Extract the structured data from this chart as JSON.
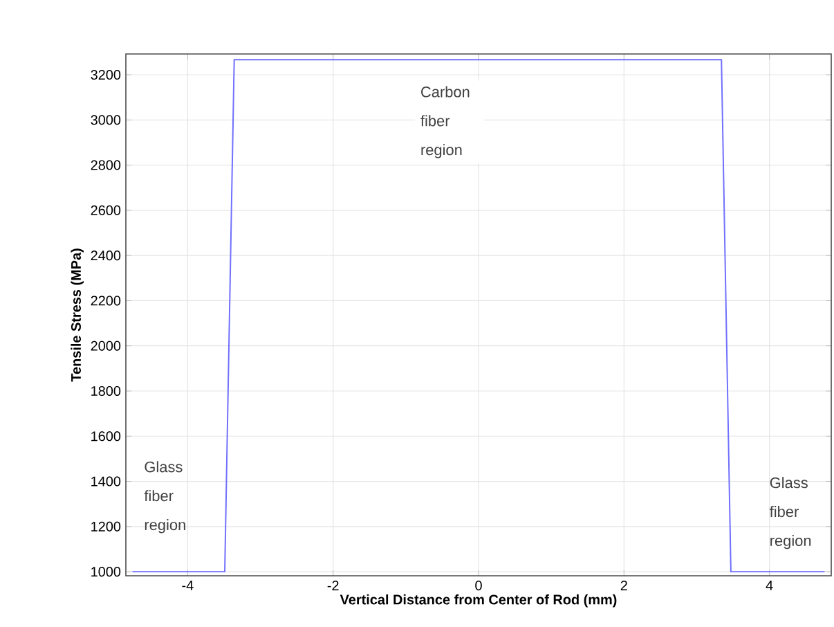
{
  "chart_data": {
    "type": "line",
    "xlabel": "Vertical Distance from Center of Rod (mm)",
    "ylabel": "Tensile Stress (MPa)",
    "x": [
      -4.76,
      -3.49,
      -3.36,
      3.34,
      3.47,
      4.76
    ],
    "series": [
      {
        "color": "#7070ff",
        "values": [
          1000,
          1000,
          3267,
          3267,
          1000,
          1000
        ]
      }
    ],
    "xlim": [
      -4.85,
      4.85
    ],
    "ylim": [
      982,
      3292
    ],
    "xticks": [
      -4,
      -2,
      0,
      2,
      4
    ],
    "yticks": [
      1000,
      1200,
      1400,
      1600,
      1800,
      2000,
      2200,
      2400,
      2600,
      2800,
      3000,
      3200
    ],
    "grid": true,
    "annotations": [
      "Carbon fiber region",
      "Glass fiber region",
      "Glass fiber region"
    ]
  }
}
